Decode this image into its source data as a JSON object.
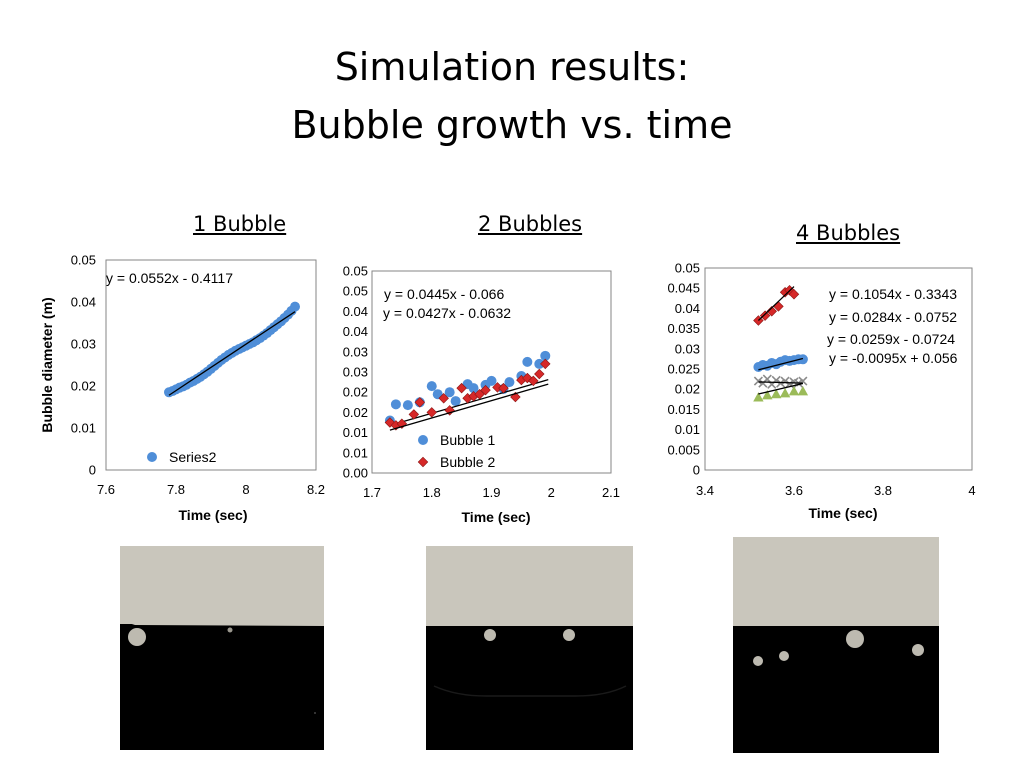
{
  "slide": {
    "title_line1": "Simulation results:",
    "title_line2": "Bubble growth vs. time"
  },
  "colors": {
    "bubble1_blue": "#4f8ed8",
    "bubble2_red": "#d62828",
    "series_green": "#9bbb59",
    "series_gray": "#8a8a8a",
    "trendline": "#000000",
    "sim_gas": "#c9c6bc",
    "sim_liquid": "#000000"
  },
  "chart_data": [
    {
      "type": "scatter",
      "subtitle": "1 Bubble",
      "xlabel": "Time (sec)",
      "ylabel": "Bubble diameter (m)",
      "xlim": [
        7.6,
        8.2
      ],
      "ylim": [
        0,
        0.05
      ],
      "x_ticks": [
        "7.6",
        "7.8",
        "8",
        "8.2"
      ],
      "y_ticks": [
        "0",
        "0.01",
        "0.02",
        "0.03",
        "0.04",
        "0.05"
      ],
      "series": [
        {
          "name": "Series2",
          "marker": "circle",
          "color": "#4f8ed8",
          "x": [
            7.78,
            7.79,
            7.8,
            7.81,
            7.82,
            7.83,
            7.84,
            7.85,
            7.86,
            7.87,
            7.88,
            7.89,
            7.9,
            7.91,
            7.92,
            7.93,
            7.94,
            7.95,
            7.96,
            7.97,
            7.98,
            7.99,
            8.0,
            8.01,
            8.02,
            8.03,
            8.04,
            8.05,
            8.06,
            8.07,
            8.08,
            8.09,
            8.1,
            8.11,
            8.12,
            8.13,
            8.14
          ],
          "y": [
            0.0185,
            0.0188,
            0.0192,
            0.0196,
            0.0199,
            0.0203,
            0.0208,
            0.0212,
            0.0217,
            0.0222,
            0.0228,
            0.0234,
            0.0241,
            0.0248,
            0.0255,
            0.0262,
            0.0268,
            0.0274,
            0.0279,
            0.0284,
            0.0288,
            0.0292,
            0.0296,
            0.03,
            0.0304,
            0.0309,
            0.0314,
            0.032,
            0.0326,
            0.0333,
            0.034,
            0.0347,
            0.0354,
            0.0362,
            0.037,
            0.0379,
            0.0389
          ],
          "trendline": {
            "x": [
              7.78,
              8.14
            ],
            "y": [
              0.0178,
              0.0377
            ]
          }
        }
      ],
      "annotations": [
        "y = 0.0552x - 0.4117"
      ],
      "legend": "bottom-left"
    },
    {
      "type": "scatter",
      "subtitle": "2 Bubbles",
      "xlabel": "Time (sec)",
      "xlim": [
        1.7,
        2.1
      ],
      "ylim": [
        0,
        0.05
      ],
      "x_ticks": [
        "1.7",
        "1.8",
        "1.9",
        "2",
        "2.1"
      ],
      "y_ticks": [
        "0.00",
        "0.01",
        "0.01",
        "0.02",
        "0.02",
        "0.03",
        "0.03",
        "0.04",
        "0.04",
        "0.05",
        "0.05"
      ],
      "series": [
        {
          "name": "Bubble 1",
          "marker": "circle",
          "color": "#4f8ed8",
          "x": [
            1.73,
            1.74,
            1.76,
            1.78,
            1.8,
            1.81,
            1.83,
            1.84,
            1.86,
            1.87,
            1.89,
            1.9,
            1.92,
            1.93,
            1.95,
            1.96,
            1.98,
            1.99
          ],
          "y": [
            0.013,
            0.017,
            0.0168,
            0.0175,
            0.0215,
            0.0195,
            0.02,
            0.0178,
            0.022,
            0.021,
            0.0218,
            0.0228,
            0.0208,
            0.0225,
            0.024,
            0.0275,
            0.027,
            0.029
          ],
          "trendline": {
            "x": [
              1.73,
              1.995
            ],
            "y": [
              0.0118,
              0.0231
            ]
          }
        },
        {
          "name": "Bubble 2",
          "marker": "diamond",
          "color": "#d62828",
          "x": [
            1.73,
            1.74,
            1.75,
            1.77,
            1.78,
            1.8,
            1.82,
            1.83,
            1.85,
            1.86,
            1.87,
            1.88,
            1.89,
            1.91,
            1.92,
            1.94,
            1.95,
            1.96,
            1.97,
            1.98,
            1.99
          ],
          "y": [
            0.0125,
            0.0118,
            0.0122,
            0.0145,
            0.0175,
            0.015,
            0.0185,
            0.0155,
            0.021,
            0.0185,
            0.019,
            0.0195,
            0.0205,
            0.0212,
            0.021,
            0.0188,
            0.023,
            0.0235,
            0.0228,
            0.0245,
            0.027
          ],
          "trendline": {
            "x": [
              1.73,
              1.995
            ],
            "y": [
              0.0106,
              0.022
            ]
          }
        }
      ],
      "annotations": [
        "y = 0.0445x - 0.066",
        "y = 0.0427x - 0.0632"
      ],
      "legend": "bottom"
    },
    {
      "type": "scatter",
      "subtitle": "4 Bubbles",
      "xlabel": "Time (sec)",
      "xlim": [
        3.4,
        4.0
      ],
      "ylim": [
        0,
        0.05
      ],
      "x_ticks": [
        "3.4",
        "3.6",
        "3.8",
        "4"
      ],
      "y_ticks": [
        "0",
        "0.005",
        "0.01",
        "0.015",
        "0.02",
        "0.025",
        "0.03",
        "0.035",
        "0.04",
        "0.045",
        "0.05"
      ],
      "series": [
        {
          "marker": "diamond",
          "color": "#d62828",
          "x": [
            3.52,
            3.535,
            3.55,
            3.565,
            3.58,
            3.59,
            3.6
          ],
          "y": [
            0.037,
            0.0382,
            0.0393,
            0.0405,
            0.044,
            0.0445,
            0.0435
          ],
          "trendline": {
            "x": [
              3.52,
              3.6
            ],
            "y": [
              0.037,
              0.0454
            ]
          }
        },
        {
          "marker": "circle",
          "color": "#4f8ed8",
          "x": [
            3.52,
            3.53,
            3.54,
            3.55,
            3.56,
            3.57,
            3.58,
            3.59,
            3.6,
            3.61,
            3.62
          ],
          "y": [
            0.0255,
            0.026,
            0.0258,
            0.0265,
            0.0262,
            0.0268,
            0.0272,
            0.027,
            0.0272,
            0.0274,
            0.0274
          ],
          "trendline": {
            "x": [
              3.52,
              3.62
            ],
            "y": [
              0.0248,
              0.0276
            ]
          }
        },
        {
          "marker": "x",
          "color": "#8a8a8a",
          "x": [
            3.52,
            3.53,
            3.54,
            3.55,
            3.56,
            3.57,
            3.58,
            3.59,
            3.6,
            3.61,
            3.62
          ],
          "y": [
            0.022,
            0.0215,
            0.0225,
            0.0212,
            0.0222,
            0.0215,
            0.022,
            0.0213,
            0.0218,
            0.0215,
            0.022
          ],
          "trendline": {
            "x": [
              3.52,
              3.62
            ],
            "y": [
              0.0218,
              0.0215
            ]
          }
        },
        {
          "marker": "triangle",
          "color": "#9bbb59",
          "x": [
            3.52,
            3.54,
            3.56,
            3.58,
            3.6,
            3.62
          ],
          "y": [
            0.018,
            0.0185,
            0.0188,
            0.019,
            0.0195,
            0.0195
          ],
          "trendline": {
            "x": [
              3.52,
              3.62
            ],
            "y": [
              0.0188,
              0.0214
            ]
          }
        }
      ],
      "annotations": [
        "y = 0.1054x - 0.3343",
        "y = 0.0284x - 0.0752",
        "y = 0.0259x - 0.0724",
        "y = -0.0095x + 0.056"
      ]
    }
  ]
}
